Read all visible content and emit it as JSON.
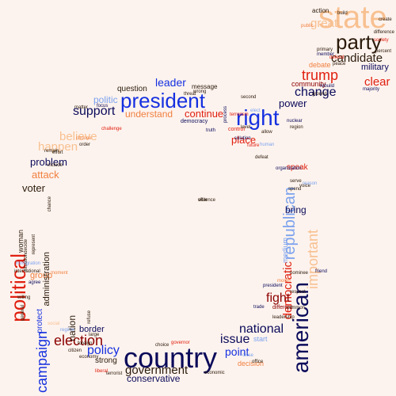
{
  "colors": {
    "background": "#fdf3ee",
    "navy": "#0a0a5a",
    "blue": "#1530e0",
    "light_blue": "#7ba2ee",
    "red": "#e02010",
    "dark_red": "#8b0000",
    "orange": "#f08040",
    "peach": "#f8c090",
    "dark": "#2a1a0a"
  },
  "words": [
    {
      "text": "country",
      "c": "navy",
      "s": 1
    },
    {
      "text": "president",
      "c": "blue",
      "s": 1
    },
    {
      "text": "party",
      "c": "dark",
      "s": 1
    },
    {
      "text": "state",
      "c": "peach",
      "s": 1
    },
    {
      "text": "right",
      "c": "blue",
      "s": 1
    },
    {
      "text": "american",
      "c": "navy",
      "s": 1
    },
    {
      "text": "political",
      "c": "red",
      "s": 1
    },
    {
      "text": "republican",
      "c": "light_blue",
      "s": 1
    },
    {
      "text": "campaign",
      "c": "blue",
      "s": 1
    },
    {
      "text": "government",
      "c": "dark",
      "s": 1
    },
    {
      "text": "election",
      "c": "dark_red",
      "s": 1
    },
    {
      "text": "candidate",
      "c": "dark",
      "s": 1
    },
    {
      "text": "support",
      "c": "navy",
      "s": 1
    },
    {
      "text": "change",
      "c": "navy",
      "s": 1
    },
    {
      "text": "trump",
      "c": "red",
      "s": 1
    },
    {
      "text": "believe",
      "c": "peach",
      "s": 1
    },
    {
      "text": "happen",
      "c": "peach",
      "s": 1
    },
    {
      "text": "national",
      "c": "navy",
      "s": 1
    },
    {
      "text": "issue",
      "c": "navy",
      "s": 1
    },
    {
      "text": "clear",
      "c": "red",
      "s": 1
    },
    {
      "text": "democratic",
      "c": "red",
      "s": 1
    },
    {
      "text": "important",
      "c": "peach",
      "s": 1
    },
    {
      "text": "fight",
      "c": "dark_red",
      "s": 1
    },
    {
      "text": "policy",
      "c": "blue",
      "s": 1
    },
    {
      "text": "leader",
      "c": "blue",
      "s": 1
    },
    {
      "text": "great",
      "c": "peach",
      "s": 1
    },
    {
      "text": "point",
      "c": "blue",
      "s": 1
    },
    {
      "text": "problem",
      "c": "navy",
      "s": 1
    },
    {
      "text": "attack",
      "c": "orange",
      "s": 1
    },
    {
      "text": "voter",
      "c": "dark",
      "s": 1
    },
    {
      "text": "place",
      "c": "red",
      "s": 1
    },
    {
      "text": "power",
      "c": "navy",
      "s": 1
    },
    {
      "text": "continue",
      "c": "red",
      "s": 1
    },
    {
      "text": "understand",
      "c": "orange",
      "s": 1
    },
    {
      "text": "conservative",
      "c": "navy",
      "s": 1
    },
    {
      "text": "military",
      "c": "navy",
      "s": 1
    },
    {
      "text": "strong",
      "c": "dark",
      "s": 1
    },
    {
      "text": "bring",
      "c": "navy",
      "s": 1
    },
    {
      "text": "nation",
      "c": "dark",
      "s": 1
    },
    {
      "text": "border",
      "c": "navy",
      "s": 1
    },
    {
      "text": "politic",
      "c": "light_blue",
      "s": 1
    },
    {
      "text": "medium",
      "c": "light_blue",
      "s": 1
    },
    {
      "text": "question",
      "c": "dark",
      "s": 1
    },
    {
      "text": "group",
      "c": "orange",
      "s": 1
    },
    {
      "text": "administration",
      "c": "dark",
      "s": 1
    },
    {
      "text": "action",
      "c": "dark",
      "s": 1
    },
    {
      "text": "debate",
      "c": "orange",
      "s": 1
    },
    {
      "text": "community",
      "c": "dark_red",
      "s": 1
    },
    {
      "text": "speak",
      "c": "red",
      "s": 1
    },
    {
      "text": "decision",
      "c": "orange",
      "s": 1
    },
    {
      "text": "start",
      "c": "light_blue",
      "s": 1
    },
    {
      "text": "message",
      "c": "dark",
      "s": 1
    },
    {
      "text": "protect",
      "c": "blue",
      "s": 1
    },
    {
      "text": "foreign",
      "c": "dark",
      "s": 1
    },
    {
      "text": "woman",
      "c": "dark",
      "s": 1
    },
    {
      "text": "different",
      "c": "dark_red",
      "s": 1
    },
    {
      "text": "respect",
      "c": "dark",
      "s": 1
    },
    {
      "text": "democracy",
      "c": "navy",
      "s": 1
    },
    {
      "text": "control",
      "c": "red",
      "s": 1
    },
    {
      "text": "future",
      "c": "red",
      "s": 1
    },
    {
      "text": "human",
      "c": "light_blue",
      "s": 1
    },
    {
      "text": "economic",
      "c": "dark",
      "s": 1
    },
    {
      "text": "terrorist",
      "c": "dark",
      "s": 1
    },
    {
      "text": "citizen",
      "c": "dark",
      "s": 1
    },
    {
      "text": "choice",
      "c": "dark",
      "s": 1
    },
    {
      "text": "difference",
      "c": "dark",
      "s": 1
    },
    {
      "text": "create",
      "c": "dark",
      "s": 1
    },
    {
      "text": "build",
      "c": "dark",
      "s": 1
    },
    {
      "text": "percent",
      "c": "dark",
      "s": 1
    },
    {
      "text": "majority",
      "c": "navy",
      "s": 1
    },
    {
      "text": "peace",
      "c": "dark",
      "s": 1
    },
    {
      "text": "defend",
      "c": "red",
      "s": 1
    },
    {
      "text": "process",
      "c": "navy",
      "s": 1
    },
    {
      "text": "wrong",
      "c": "dark",
      "s": 1
    },
    {
      "text": "focus",
      "c": "navy",
      "s": 1
    },
    {
      "text": "matter",
      "c": "dark",
      "s": 1
    },
    {
      "text": "challenge",
      "c": "red",
      "s": 1
    },
    {
      "text": "choose",
      "c": "orange",
      "s": 1
    },
    {
      "text": "order",
      "c": "dark",
      "s": 1
    },
    {
      "text": "effort",
      "c": "dark",
      "s": 1
    },
    {
      "text": "remain",
      "c": "dark",
      "s": 1
    },
    {
      "text": "include",
      "c": "dark",
      "s": 1
    },
    {
      "text": "chance",
      "c": "dark",
      "s": 1
    },
    {
      "text": "decide",
      "c": "dark",
      "s": 1
    },
    {
      "text": "situation",
      "c": "dark",
      "s": 1
    },
    {
      "text": "immigration",
      "c": "light_blue",
      "s": 1
    },
    {
      "text": "international",
      "c": "dark",
      "s": 1
    },
    {
      "text": "agree",
      "c": "navy",
      "s": 1
    },
    {
      "text": "moment",
      "c": "orange",
      "s": 1
    },
    {
      "text": "nuclear",
      "c": "navy",
      "s": 1
    },
    {
      "text": "region",
      "c": "dark",
      "s": 1
    },
    {
      "text": "allow",
      "c": "dark",
      "s": 1
    },
    {
      "text": "serve",
      "c": "dark",
      "s": 1
    },
    {
      "text": "spend",
      "c": "dark",
      "s": 1
    },
    {
      "text": "voice",
      "c": "dark",
      "s": 1
    },
    {
      "text": "reason",
      "c": "light_blue",
      "s": 1
    },
    {
      "text": "leadership",
      "c": "dark",
      "s": 1
    },
    {
      "text": "close",
      "c": "light_blue",
      "s": 1
    },
    {
      "text": "office",
      "c": "dark",
      "s": 1
    },
    {
      "text": "trade",
      "c": "navy",
      "s": 1
    },
    {
      "text": "nominee",
      "c": "dark",
      "s": 1
    },
    {
      "text": "liberal",
      "c": "red",
      "s": 1
    },
    {
      "text": "regime",
      "c": "light_blue",
      "s": 1
    },
    {
      "text": "governor",
      "c": "red",
      "s": 1
    },
    {
      "text": "truth",
      "c": "navy",
      "s": 1
    },
    {
      "text": "second",
      "c": "dark",
      "s": 1
    },
    {
      "text": "elect",
      "c": "light_blue",
      "s": 1
    },
    {
      "text": "public",
      "c": "orange",
      "s": 1
    },
    {
      "text": "primary",
      "c": "dark",
      "s": 1
    },
    {
      "text": "society",
      "c": "red",
      "s": 1
    },
    {
      "text": "member",
      "c": "navy",
      "s": 1
    },
    {
      "text": "solution",
      "c": "navy",
      "s": 1
    },
    {
      "text": "terrorism",
      "c": "red",
      "s": 1
    },
    {
      "text": "organization",
      "c": "navy",
      "s": 1
    },
    {
      "text": "defeat",
      "c": "dark",
      "s": 1
    },
    {
      "text": "ground",
      "c": "dark",
      "s": 1
    },
    {
      "text": "threat",
      "c": "dark",
      "s": 1
    },
    {
      "text": "level",
      "c": "dark",
      "s": 1
    },
    {
      "text": "friend",
      "c": "navy",
      "s": 1
    },
    {
      "text": "month",
      "c": "orange",
      "s": 1
    },
    {
      "text": "social",
      "c": "peach",
      "s": 1
    },
    {
      "text": "general",
      "c": "dark",
      "s": 1
    },
    {
      "text": "large",
      "c": "dark",
      "s": 1
    },
    {
      "text": "represent",
      "c": "dark",
      "s": 1
    },
    {
      "text": "willing",
      "c": "dark",
      "s": 1
    },
    {
      "text": "refuse",
      "c": "dark",
      "s": 1
    },
    {
      "text": "rebuild",
      "c": "navy",
      "s": 1
    },
    {
      "text": "common",
      "c": "dark",
      "s": 1
    },
    {
      "text": "president",
      "c": "navy",
      "s": 1
    },
    {
      "text": "economy",
      "c": "dark",
      "s": 1
    },
    {
      "text": "violence",
      "c": "dark",
      "s": 1
    },
    {
      "text": "offer",
      "c": "dark",
      "s": 1
    }
  ]
}
